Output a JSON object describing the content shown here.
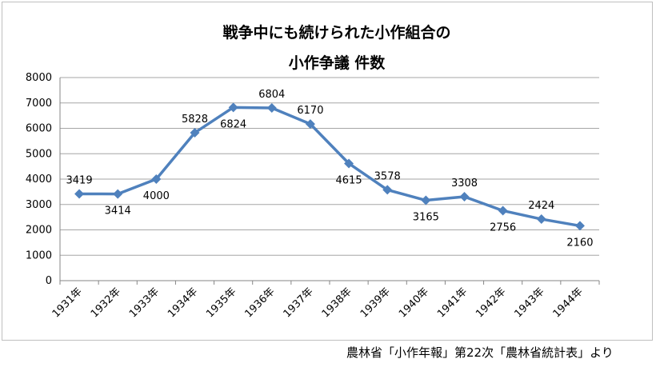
{
  "chart_data": {
    "type": "line",
    "title_lines": [
      "戦争中にも続けられた小作組合の",
      "小作争議 件数"
    ],
    "categories": [
      "1931年",
      "1932年",
      "1933年",
      "1934年",
      "1935年",
      "1936年",
      "1937年",
      "1938年",
      "1939年",
      "1940年",
      "1941年",
      "1942年",
      "1943年",
      "1944年"
    ],
    "series": [
      {
        "values": [
          3419,
          3414,
          4000,
          5828,
          6824,
          6804,
          6170,
          4615,
          3578,
          3165,
          3308,
          2756,
          2424,
          2160
        ]
      }
    ],
    "data_label_placement": [
      "above",
      "below",
      "below",
      "above",
      "below",
      "above",
      "above",
      "below",
      "above",
      "below",
      "above",
      "below",
      "above",
      "below"
    ],
    "ylim": [
      0,
      8000
    ],
    "yticks": [
      0,
      1000,
      2000,
      3000,
      4000,
      5000,
      6000,
      7000,
      8000
    ],
    "grid": true,
    "line_color": "#4F81BD",
    "grid_color": "#a6a6a6"
  },
  "source_note": "農林省「小作年報」第22次「農林省統計表」より"
}
